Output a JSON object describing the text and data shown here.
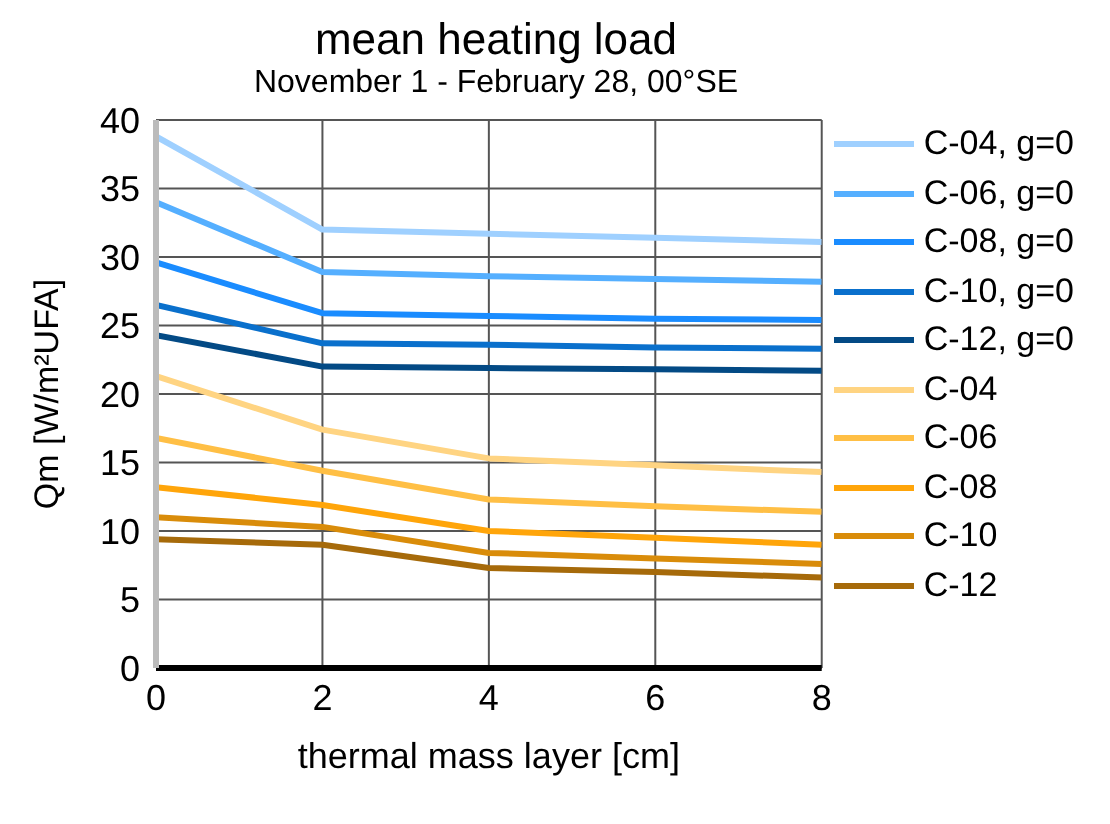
{
  "chart_data": {
    "type": "line",
    "title": "mean heating load",
    "subtitle": "November 1 - February 28, 00°SE",
    "xlabel": "thermal mass layer [cm]",
    "ylabel": "Qm [W/m²UFA]",
    "x": [
      0,
      2,
      4,
      6,
      8
    ],
    "xlim": [
      0,
      8
    ],
    "xticks": [
      0,
      2,
      4,
      6,
      8
    ],
    "ylim": [
      0,
      40
    ],
    "yticks": [
      0,
      5,
      10,
      15,
      20,
      25,
      30,
      35,
      40
    ],
    "grid": true,
    "legend": "right",
    "marker": "none",
    "line_style": "solid",
    "series": [
      {
        "name": "C-04, g=0",
        "color": "#9fd0ff",
        "values": [
          38.8,
          32.0,
          31.7,
          31.4,
          31.1
        ]
      },
      {
        "name": "C-06, g=0",
        "color": "#55afff",
        "values": [
          34.0,
          28.9,
          28.6,
          28.4,
          28.2
        ]
      },
      {
        "name": "C-08, g=0",
        "color": "#1a8cff",
        "values": [
          29.6,
          25.9,
          25.7,
          25.5,
          25.4
        ]
      },
      {
        "name": "C-10, g=0",
        "color": "#0a70cc",
        "values": [
          26.5,
          23.7,
          23.6,
          23.4,
          23.3
        ]
      },
      {
        "name": "C-12, g=0",
        "color": "#034a85",
        "values": [
          24.3,
          22.0,
          21.9,
          21.8,
          21.7
        ]
      },
      {
        "name": "C-04",
        "color": "#ffd482",
        "values": [
          21.3,
          17.4,
          15.3,
          14.8,
          14.3
        ]
      },
      {
        "name": "C-06",
        "color": "#ffbf45",
        "values": [
          16.8,
          14.4,
          12.3,
          11.8,
          11.4
        ]
      },
      {
        "name": "C-08",
        "color": "#ffa50a",
        "values": [
          13.2,
          11.9,
          10.0,
          9.5,
          9.0
        ]
      },
      {
        "name": "C-10",
        "color": "#d98c0a",
        "values": [
          11.0,
          10.3,
          8.4,
          8.0,
          7.6
        ]
      },
      {
        "name": "C-12",
        "color": "#a66a0a",
        "values": [
          9.4,
          9.0,
          7.3,
          7.0,
          6.6
        ]
      }
    ]
  }
}
